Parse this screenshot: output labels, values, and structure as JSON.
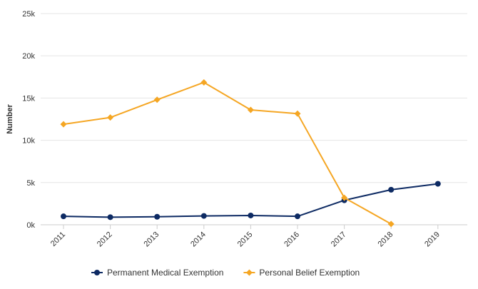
{
  "chart_data": {
    "type": "line",
    "title": "",
    "xlabel": "",
    "ylabel": "Number",
    "ylim": [
      0,
      25000
    ],
    "y_ticks": [
      0,
      5000,
      10000,
      15000,
      20000,
      25000
    ],
    "y_tick_labels": [
      "0k",
      "5k",
      "10k",
      "15k",
      "20k",
      "25k"
    ],
    "categories": [
      "2011",
      "2012",
      "2013",
      "2014",
      "2015",
      "2016",
      "2017",
      "2018",
      "2019"
    ],
    "grid": "horizontal",
    "legend_position": "bottom-center",
    "series": [
      {
        "name": "Permanent Medical Exemption",
        "color": "#0d2a63",
        "marker": "circle",
        "values": [
          1000,
          900,
          950,
          1050,
          1100,
          1000,
          2900,
          4150,
          4850
        ]
      },
      {
        "name": "Personal Belief Exemption",
        "color": "#f5a623",
        "marker": "diamond",
        "values": [
          11900,
          12700,
          14800,
          16850,
          13600,
          13150,
          3200,
          100,
          null
        ]
      }
    ]
  }
}
